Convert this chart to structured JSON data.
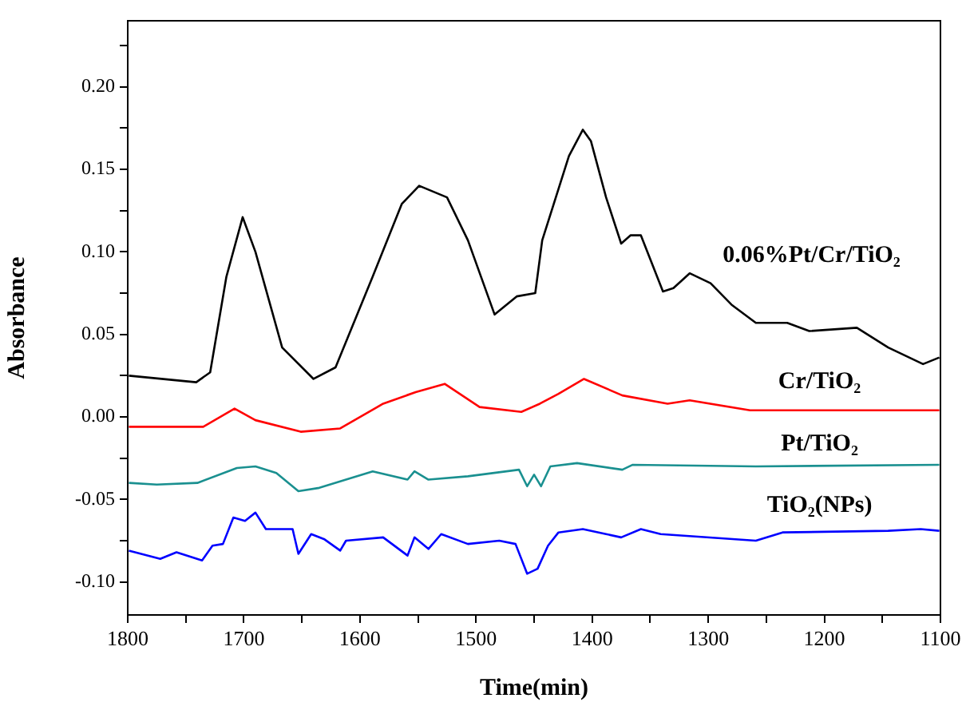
{
  "chart_data": {
    "type": "line",
    "xlabel": "Time(min)",
    "ylabel": "Absorbance",
    "xlim": [
      1800,
      1100
    ],
    "xticks": [
      1800,
      {
        "value": 1750,
        "label": null
      },
      1700,
      {
        "value": 1650,
        "label": null
      },
      1600,
      {
        "value": 1550,
        "label": null
      },
      1500,
      {
        "value": 1450,
        "label": null
      },
      1400,
      {
        "value": 1350,
        "label": null
      },
      1300,
      {
        "value": 1250,
        "label": null
      },
      1200,
      {
        "value": 1150,
        "label": null
      },
      1100
    ],
    "ylim": [
      -0.12,
      0.24
    ],
    "yticks": [
      {
        "value": -0.1,
        "label": "-0.10"
      },
      {
        "value": -0.075,
        "label": null
      },
      -0.05,
      {
        "value": -0.025,
        "label": null
      },
      {
        "value": 0,
        "label": "0.00"
      },
      {
        "value": 0.025,
        "label": null
      },
      0.05,
      {
        "value": 0.075,
        "label": null
      },
      {
        "value": 0.1,
        "label": "0.10"
      },
      {
        "value": 0.125,
        "label": null
      },
      0.15,
      {
        "value": 0.175,
        "label": null
      },
      {
        "value": 0.2,
        "label": "0.20"
      },
      {
        "value": 0.225,
        "label": null
      }
    ],
    "grid": false,
    "legend": false,
    "marker": "none",
    "line_style": "solid",
    "series": [
      {
        "name": "0.06%Pt/Cr/TiO₂",
        "color": "#000000",
        "x": [
          1799,
          1741,
          1729,
          1715,
          1701,
          1690,
          1667,
          1640,
          1621,
          1589,
          1564,
          1549,
          1525,
          1507,
          1484,
          1465,
          1449,
          1443,
          1420,
          1408,
          1401,
          1388,
          1375,
          1367,
          1358,
          1339,
          1330,
          1316,
          1298,
          1280,
          1259,
          1232,
          1213,
          1172,
          1145,
          1115,
          1101
        ],
        "values": [
          0.025,
          0.021,
          0.027,
          0.085,
          0.121,
          0.1,
          0.042,
          0.023,
          0.03,
          0.085,
          0.129,
          0.14,
          0.133,
          0.107,
          0.062,
          0.073,
          0.075,
          0.107,
          0.158,
          0.174,
          0.167,
          0.133,
          0.105,
          0.11,
          0.11,
          0.076,
          0.078,
          0.087,
          0.081,
          0.068,
          0.057,
          0.057,
          0.052,
          0.054,
          0.042,
          0.032,
          0.036
        ]
      },
      {
        "name": "Cr/TiO₂",
        "color": "#ff0000",
        "x": [
          1799,
          1735,
          1708,
          1690,
          1651,
          1617,
          1580,
          1552,
          1527,
          1497,
          1461,
          1445,
          1429,
          1407,
          1374,
          1335,
          1316,
          1264,
          1101
        ],
        "values": [
          -0.006,
          -0.006,
          0.005,
          -0.002,
          -0.009,
          -0.007,
          0.008,
          0.015,
          0.02,
          0.006,
          0.003,
          0.008,
          0.014,
          0.023,
          0.013,
          0.008,
          0.01,
          0.004,
          0.004
        ]
      },
      {
        "name": "Pt/TiO₂",
        "color": "#1a9090",
        "x": [
          1799,
          1775,
          1740,
          1706,
          1690,
          1672,
          1653,
          1635,
          1612,
          1589,
          1559,
          1553,
          1541,
          1507,
          1463,
          1456,
          1450,
          1444,
          1436,
          1413,
          1374,
          1365,
          1259,
          1101
        ],
        "values": [
          -0.04,
          -0.041,
          -0.04,
          -0.031,
          -0.03,
          -0.034,
          -0.045,
          -0.043,
          -0.038,
          -0.033,
          -0.038,
          -0.033,
          -0.038,
          -0.036,
          -0.032,
          -0.042,
          -0.035,
          -0.042,
          -0.03,
          -0.028,
          -0.032,
          -0.029,
          -0.03,
          -0.029
        ]
      },
      {
        "name": "TiO₂(NPs)",
        "color": "#0000ff",
        "x": [
          1799,
          1772,
          1758,
          1736,
          1727,
          1718,
          1709,
          1699,
          1690,
          1681,
          1674,
          1658,
          1653,
          1642,
          1631,
          1617,
          1612,
          1580,
          1559,
          1553,
          1541,
          1530,
          1507,
          1480,
          1466,
          1456,
          1447,
          1438,
          1429,
          1408,
          1388,
          1375,
          1358,
          1341,
          1259,
          1236,
          1145,
          1117,
          1101
        ],
        "values": [
          -0.081,
          -0.086,
          -0.082,
          -0.087,
          -0.078,
          -0.077,
          -0.061,
          -0.063,
          -0.058,
          -0.068,
          -0.068,
          -0.068,
          -0.083,
          -0.071,
          -0.074,
          -0.081,
          -0.075,
          -0.073,
          -0.084,
          -0.073,
          -0.08,
          -0.071,
          -0.077,
          -0.075,
          -0.077,
          -0.095,
          -0.092,
          -0.078,
          -0.07,
          -0.068,
          -0.071,
          -0.073,
          -0.068,
          -0.071,
          -0.075,
          -0.07,
          -0.069,
          -0.068,
          -0.069
        ]
      }
    ]
  }
}
